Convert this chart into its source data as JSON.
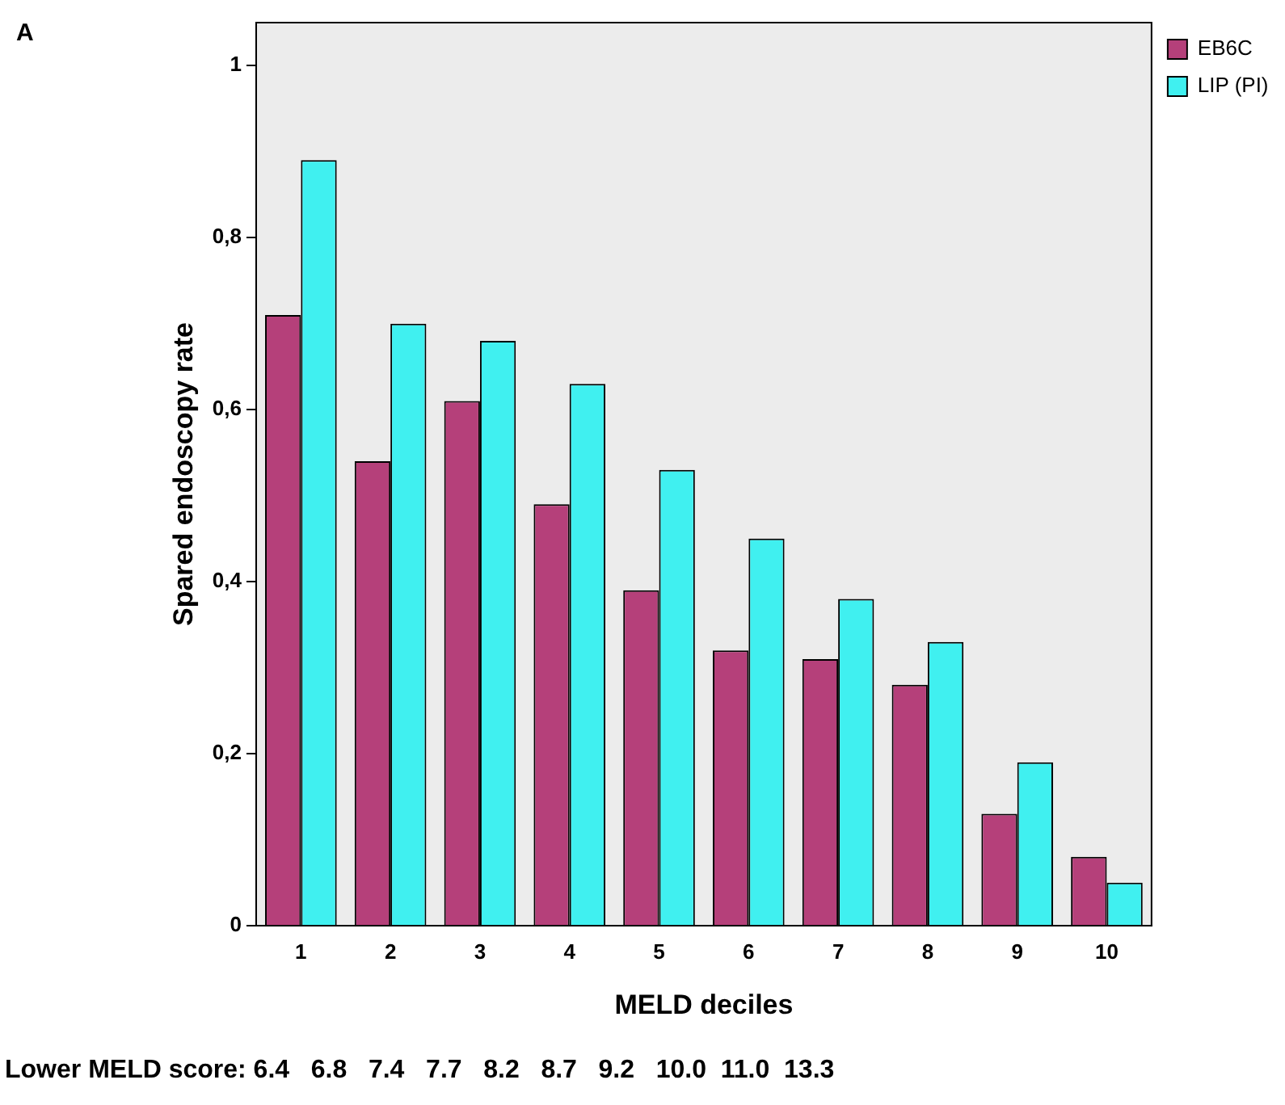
{
  "chart_data": {
    "type": "bar",
    "xlabel": "MELD deciles",
    "ylabel": "Spared endoscopy rate",
    "categories": [
      "1",
      "2",
      "3",
      "4",
      "5",
      "6",
      "7",
      "8",
      "9",
      "10"
    ],
    "series": [
      {
        "name": "EB6C",
        "color": "#b5407a",
        "values": [
          0.71,
          0.54,
          0.61,
          0.49,
          0.39,
          0.32,
          0.31,
          0.28,
          0.13,
          0.08
        ]
      },
      {
        "name": "LIP (PI)",
        "color": "#40f0f0",
        "values": [
          0.89,
          0.7,
          0.68,
          0.63,
          0.53,
          0.45,
          0.38,
          0.33,
          0.19,
          0.05
        ]
      }
    ],
    "ylim": [
      0,
      1.05
    ],
    "yticks": [
      {
        "value": 0,
        "label": "0"
      },
      {
        "value": 0.2,
        "label": "0,2"
      },
      {
        "value": 0.4,
        "label": "0,4"
      },
      {
        "value": 0.6,
        "label": "0,6"
      },
      {
        "value": 0.8,
        "label": "0,8"
      },
      {
        "value": 1,
        "label": "1"
      }
    ],
    "grid": false,
    "legend": "top right",
    "annotations": [
      "A",
      "Lower MELD score: 6.4   6.8   7.4   7.7   8.2   8.7   9.2   10.0  11.0  13.3"
    ]
  }
}
